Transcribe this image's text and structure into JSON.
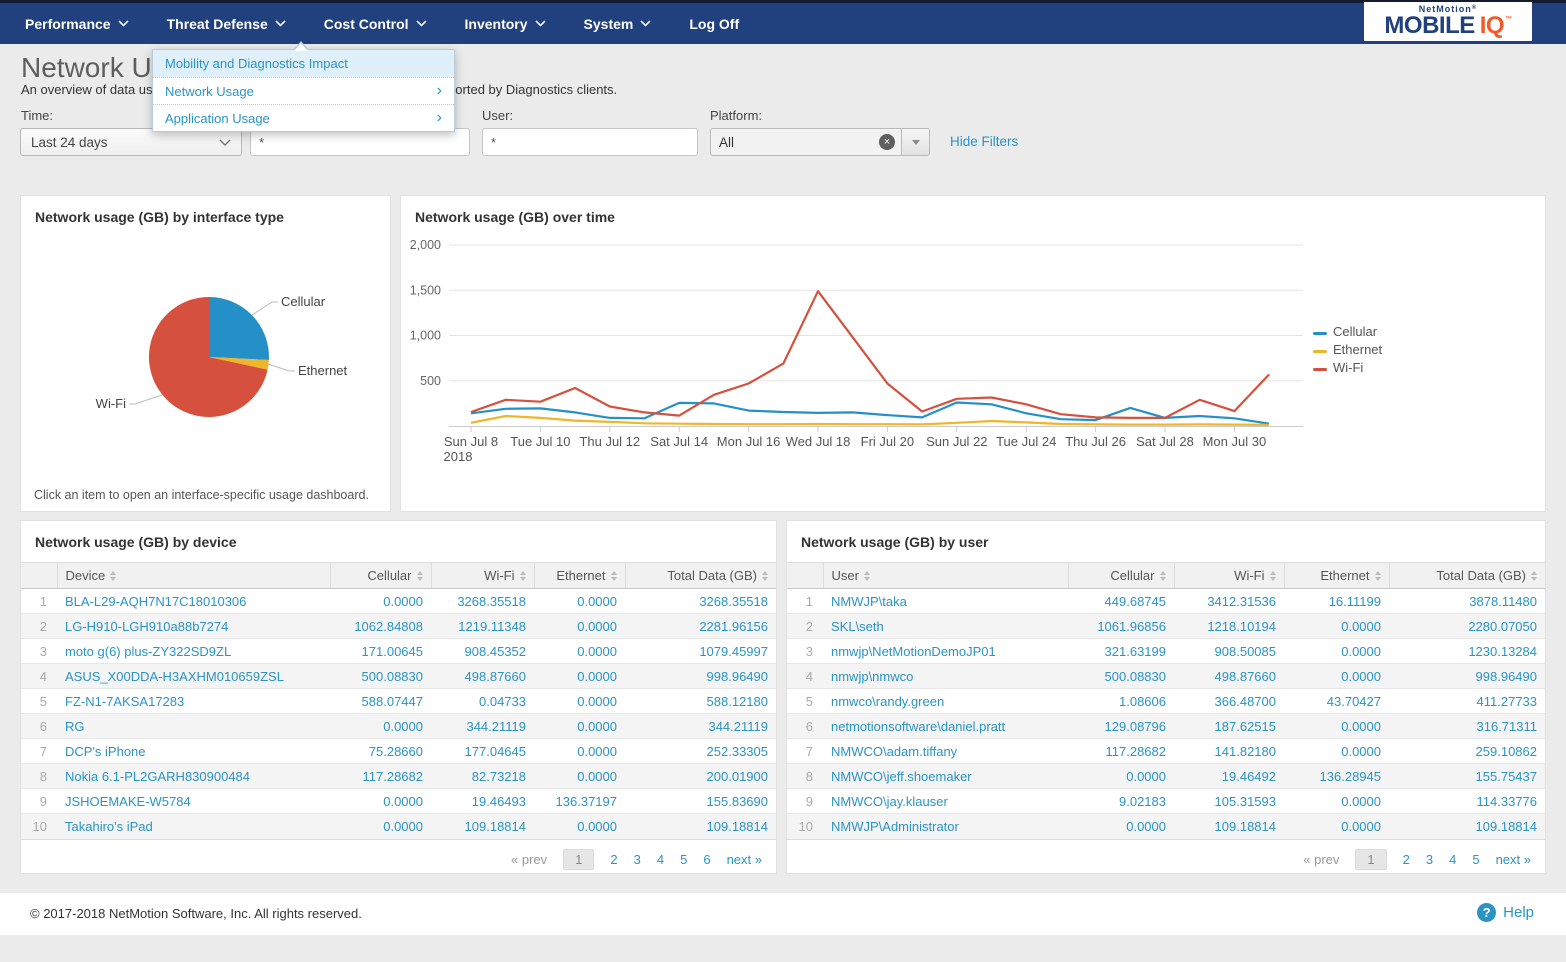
{
  "nav": {
    "items": [
      {
        "label": "Performance",
        "caret": true
      },
      {
        "label": "Threat Defense",
        "caret": true
      },
      {
        "label": "Cost Control",
        "caret": true
      },
      {
        "label": "Inventory",
        "caret": true
      },
      {
        "label": "System",
        "caret": true
      },
      {
        "label": "Log Off",
        "caret": false
      }
    ],
    "logo": {
      "top": "NetMotion",
      "reg": "®",
      "main": "MOBILE",
      "accent": "IQ",
      "tm": "™"
    }
  },
  "menu": {
    "items": [
      {
        "label": "Mobility and Diagnostics Impact",
        "submenu": false,
        "highlighted": true
      },
      {
        "label": "Network Usage",
        "submenu": true,
        "highlighted": false
      },
      {
        "label": "Application Usage",
        "submenu": true,
        "highlighted": false
      }
    ],
    "submenu_arrow": "›"
  },
  "header": {
    "title": "Network Usage",
    "subtitle": "An overview of data usage by interface type, device, and user. Usage is reported by Diagnostics clients."
  },
  "filters": {
    "time_label": "Time:",
    "time_value": "Last 24 days",
    "device_value": "*",
    "user_label": "User:",
    "user_value": "*",
    "platform_label": "Platform:",
    "platform_value": "All",
    "clear_glyph": "×",
    "hide_filters": "Hide Filters"
  },
  "pie_panel": {
    "title": "Network usage (GB) by interface type",
    "caption": "Click an item to open an interface-specific usage dashboard."
  },
  "line_panel": {
    "title": "Network usage (GB) over time"
  },
  "chart_data": [
    {
      "type": "pie",
      "title": "Network usage (GB) by interface type",
      "labels": [
        "Cellular",
        "Ethernet",
        "Wi-Fi"
      ],
      "values_percent": [
        25.8,
        2.6,
        71.6
      ],
      "colors": [
        "#2590c7",
        "#efb52b",
        "#d5513d"
      ],
      "start_angle_deg": 0,
      "direction": "clockwise"
    },
    {
      "type": "line",
      "title": "Network usage (GB) over time",
      "x": [
        "Jul 8",
        "Jul 9",
        "Jul 10",
        "Jul 11",
        "Jul 12",
        "Jul 13",
        "Jul 14",
        "Jul 15",
        "Jul 16",
        "Jul 17",
        "Jul 18",
        "Jul 19",
        "Jul 20",
        "Jul 21",
        "Jul 22",
        "Jul 23",
        "Jul 24",
        "Jul 25",
        "Jul 26",
        "Jul 27",
        "Jul 28",
        "Jul 29",
        "Jul 30",
        "Jul 31"
      ],
      "x_ticks": [
        {
          "i": 0,
          "label": "Sun Jul 8",
          "sub": "2018"
        },
        {
          "i": 2,
          "label": "Tue Jul 10"
        },
        {
          "i": 4,
          "label": "Thu Jul 12"
        },
        {
          "i": 6,
          "label": "Sat Jul 14"
        },
        {
          "i": 8,
          "label": "Mon Jul 16"
        },
        {
          "i": 10,
          "label": "Wed Jul 18"
        },
        {
          "i": 12,
          "label": "Fri Jul 20"
        },
        {
          "i": 14,
          "label": "Sun Jul 22"
        },
        {
          "i": 16,
          "label": "Tue Jul 24"
        },
        {
          "i": 18,
          "label": "Thu Jul 26"
        },
        {
          "i": 20,
          "label": "Sat Jul 28"
        },
        {
          "i": 22,
          "label": "Mon Jul 30"
        }
      ],
      "ylim": [
        0,
        2000
      ],
      "yticks": [
        500,
        1000,
        1500,
        2000
      ],
      "ytick_labels": [
        "500",
        "1,000",
        "1,500",
        "2,000"
      ],
      "grid": true,
      "legend_position": "right",
      "series": [
        {
          "name": "Cellular",
          "color": "#2590c7",
          "values": [
            140,
            190,
            195,
            150,
            90,
            85,
            255,
            250,
            170,
            155,
            145,
            150,
            120,
            95,
            260,
            240,
            140,
            75,
            65,
            200,
            90,
            110,
            85,
            25
          ]
        },
        {
          "name": "Ethernet",
          "color": "#efb52b",
          "values": [
            35,
            110,
            90,
            60,
            45,
            30,
            25,
            22,
            20,
            20,
            22,
            20,
            20,
            18,
            35,
            55,
            40,
            22,
            18,
            15,
            15,
            18,
            15,
            12
          ]
        },
        {
          "name": "Wi-Fi",
          "color": "#d5513d",
          "values": [
            155,
            290,
            268,
            420,
            215,
            150,
            115,
            345,
            470,
            690,
            1490,
            980,
            470,
            160,
            300,
            315,
            240,
            130,
            95,
            90,
            90,
            290,
            165,
            570
          ]
        }
      ]
    }
  ],
  "tables": {
    "device": {
      "title": "Network usage (GB) by device",
      "columns": [
        "Device",
        "Cellular",
        "Wi-Fi",
        "Ethernet",
        "Total Data (GB)"
      ],
      "rows": [
        {
          "name": "BLA-L29-AQH7N17C18010306",
          "values": [
            "0.0000",
            "3268.35518",
            "0.0000",
            "3268.35518"
          ]
        },
        {
          "name": "LG-H910-LGH910a88b7274",
          "values": [
            "1062.84808",
            "1219.11348",
            "0.0000",
            "2281.96156"
          ]
        },
        {
          "name": "moto g(6) plus-ZY322SD9ZL",
          "values": [
            "171.00645",
            "908.45352",
            "0.0000",
            "1079.45997"
          ]
        },
        {
          "name": "ASUS_X00DDA-H3AXHM010659ZSL",
          "values": [
            "500.08830",
            "498.87660",
            "0.0000",
            "998.96490"
          ]
        },
        {
          "name": "FZ-N1-7AKSA17283",
          "values": [
            "588.07447",
            "0.04733",
            "0.0000",
            "588.12180"
          ]
        },
        {
          "name": "RG",
          "values": [
            "0.0000",
            "344.21119",
            "0.0000",
            "344.21119"
          ]
        },
        {
          "name": "DCP's iPhone",
          "values": [
            "75.28660",
            "177.04645",
            "0.0000",
            "252.33305"
          ]
        },
        {
          "name": "Nokia 6.1-PL2GARH830900484",
          "values": [
            "117.28682",
            "82.73218",
            "0.0000",
            "200.01900"
          ]
        },
        {
          "name": "JSHOEMAKE-W5784",
          "values": [
            "0.0000",
            "19.46493",
            "136.37197",
            "155.83690"
          ]
        },
        {
          "name": "Takahiro's iPad",
          "values": [
            "0.0000",
            "109.18814",
            "0.0000",
            "109.18814"
          ]
        }
      ],
      "pagination": {
        "prev": "« prev",
        "pages": [
          "1",
          "2",
          "3",
          "4",
          "5",
          "6"
        ],
        "current": "1",
        "next": "next »"
      }
    },
    "user": {
      "title": "Network usage (GB) by user",
      "columns": [
        "User",
        "Cellular",
        "Wi-Fi",
        "Ethernet",
        "Total Data (GB)"
      ],
      "rows": [
        {
          "name": "NMWJP\\taka",
          "values": [
            "449.68745",
            "3412.31536",
            "16.11199",
            "3878.11480"
          ]
        },
        {
          "name": "SKL\\seth",
          "values": [
            "1061.96856",
            "1218.10194",
            "0.0000",
            "2280.07050"
          ]
        },
        {
          "name": "nmwjp\\NetMotionDemoJP01",
          "values": [
            "321.63199",
            "908.50085",
            "0.0000",
            "1230.13284"
          ]
        },
        {
          "name": "nmwjp\\nmwco",
          "values": [
            "500.08830",
            "498.87660",
            "0.0000",
            "998.96490"
          ]
        },
        {
          "name": "nmwco\\randy.green",
          "values": [
            "1.08606",
            "366.48700",
            "43.70427",
            "411.27733"
          ]
        },
        {
          "name": "netmotionsoftware\\daniel.pratt",
          "values": [
            "129.08796",
            "187.62515",
            "0.0000",
            "316.71311"
          ]
        },
        {
          "name": "NMWCO\\adam.tiffany",
          "values": [
            "117.28682",
            "141.82180",
            "0.0000",
            "259.10862"
          ]
        },
        {
          "name": "NMWCO\\jeff.shoemaker",
          "values": [
            "0.0000",
            "19.46492",
            "136.28945",
            "155.75437"
          ]
        },
        {
          "name": "NMWCO\\jay.klauser",
          "values": [
            "9.02183",
            "105.31593",
            "0.0000",
            "114.33776"
          ]
        },
        {
          "name": "NMWJP\\Administrator",
          "values": [
            "0.0000",
            "109.18814",
            "0.0000",
            "109.18814"
          ]
        }
      ],
      "pagination": {
        "prev": "« prev",
        "pages": [
          "1",
          "2",
          "3",
          "4",
          "5"
        ],
        "current": "1",
        "next": "next »"
      }
    }
  },
  "footer": {
    "copyright": "© 2017-2018 NetMotion Software, Inc. All rights reserved.",
    "help": "Help"
  },
  "colors": {
    "navbar": "#21407e",
    "accent": "#2a94c4",
    "cellular": "#2590c7",
    "ethernet": "#efb52b",
    "wifi": "#d5513d",
    "logo_orange": "#f15a29"
  }
}
